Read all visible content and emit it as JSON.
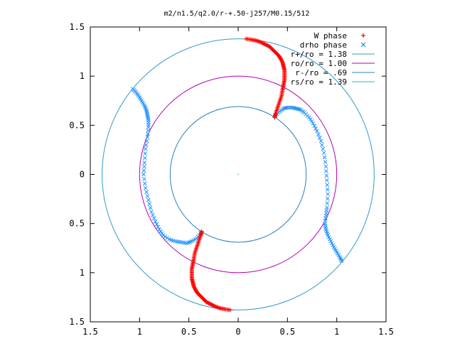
{
  "chart_data": {
    "type": "scatter",
    "title": "m2/n1.5/q2.0/r-+.50-j257/M0.15/512",
    "xlabel": "",
    "ylabel": "",
    "xlim": [
      -1.5,
      1.5
    ],
    "ylim": [
      -1.5,
      1.5
    ],
    "x_ticks": [
      -1.5,
      -1,
      -0.5,
      0,
      0.5,
      1,
      1.5
    ],
    "x_tick_labels": [
      "1.5",
      "1",
      "0.5",
      "0",
      "0.5",
      "1",
      "1.5"
    ],
    "y_ticks": [
      1.5,
      1,
      0.5,
      0,
      -0.5,
      -1,
      -1.5
    ],
    "y_tick_labels": [
      "1.5",
      "1",
      "0.5",
      "0",
      "0.5",
      "1",
      "1.5"
    ],
    "grid": false,
    "legend_position": "top-right",
    "legend": [
      {
        "label": "W phase",
        "kind": "marker",
        "marker": "+",
        "color": "#ff0000"
      },
      {
        "label": "drho phase",
        "kind": "marker",
        "marker": "x",
        "color": "#0080ff"
      },
      {
        "label": "r+/ro = 1.38",
        "kind": "line",
        "color": "#3399cc"
      },
      {
        "label": "ro/ro = 1.00",
        "kind": "line",
        "color": "#b000b0"
      },
      {
        "label": "r-/ro = .69",
        "kind": "line",
        "color": "#2a7fbf"
      },
      {
        "label": "rs/ro = 1.39",
        "kind": "line",
        "color": "#00c8c8"
      }
    ],
    "circles": [
      {
        "name": "r+/ro = 1.38",
        "r": 1.38,
        "color": "#3399cc"
      },
      {
        "name": "ro/ro = 1.00",
        "r": 1.0,
        "color": "#b000b0"
      },
      {
        "name": "r-/ro = .69",
        "r": 0.69,
        "color": "#2a7fbf"
      }
    ],
    "w_phase": [
      {
        "arm": 1,
        "points": [
          [
            0.08,
            1.38
          ],
          [
            0.14,
            1.37
          ],
          [
            0.19,
            1.36
          ],
          [
            0.24,
            1.34
          ],
          [
            0.28,
            1.32
          ],
          [
            0.32,
            1.3
          ],
          [
            0.35,
            1.27
          ],
          [
            0.38,
            1.24
          ],
          [
            0.41,
            1.21
          ],
          [
            0.43,
            1.18
          ],
          [
            0.45,
            1.14
          ],
          [
            0.46,
            1.1
          ],
          [
            0.47,
            1.06
          ],
          [
            0.47,
            1.01
          ],
          [
            0.47,
            0.96
          ],
          [
            0.46,
            0.91
          ],
          [
            0.45,
            0.86
          ],
          [
            0.44,
            0.8
          ],
          [
            0.42,
            0.74
          ],
          [
            0.4,
            0.68
          ],
          [
            0.38,
            0.62
          ],
          [
            0.37,
            0.58
          ]
        ]
      },
      {
        "arm": 2,
        "points": [
          [
            -0.08,
            -1.38
          ],
          [
            -0.14,
            -1.37
          ],
          [
            -0.19,
            -1.36
          ],
          [
            -0.24,
            -1.34
          ],
          [
            -0.28,
            -1.32
          ],
          [
            -0.32,
            -1.3
          ],
          [
            -0.35,
            -1.27
          ],
          [
            -0.38,
            -1.24
          ],
          [
            -0.41,
            -1.21
          ],
          [
            -0.43,
            -1.18
          ],
          [
            -0.45,
            -1.14
          ],
          [
            -0.46,
            -1.1
          ],
          [
            -0.47,
            -1.06
          ],
          [
            -0.47,
            -1.01
          ],
          [
            -0.47,
            -0.96
          ],
          [
            -0.46,
            -0.91
          ],
          [
            -0.45,
            -0.86
          ],
          [
            -0.44,
            -0.8
          ],
          [
            -0.42,
            -0.74
          ],
          [
            -0.4,
            -0.68
          ],
          [
            -0.38,
            -0.62
          ],
          [
            -0.37,
            -0.58
          ]
        ]
      }
    ],
    "drho_phase": [
      {
        "arm": 1,
        "points": [
          [
            0.38,
            0.6
          ],
          [
            0.42,
            0.64
          ],
          [
            0.46,
            0.67
          ],
          [
            0.5,
            0.68
          ],
          [
            0.55,
            0.68
          ],
          [
            0.59,
            0.67
          ],
          [
            0.63,
            0.66
          ],
          [
            0.67,
            0.63
          ],
          [
            0.72,
            0.58
          ],
          [
            0.76,
            0.52
          ],
          [
            0.8,
            0.44
          ],
          [
            0.84,
            0.34
          ],
          [
            0.87,
            0.22
          ],
          [
            0.89,
            0.08
          ],
          [
            0.9,
            -0.06
          ],
          [
            0.91,
            -0.2
          ],
          [
            0.9,
            -0.34
          ],
          [
            0.89,
            -0.42
          ],
          [
            0.88,
            -0.5
          ],
          [
            0.89,
            -0.56
          ],
          [
            0.91,
            -0.62
          ],
          [
            0.94,
            -0.68
          ],
          [
            0.97,
            -0.74
          ],
          [
            1.0,
            -0.79
          ],
          [
            1.03,
            -0.84
          ],
          [
            1.05,
            -0.88
          ]
        ]
      },
      {
        "arm": 2,
        "points": [
          [
            -1.07,
            0.87
          ],
          [
            -1.04,
            0.84
          ],
          [
            -1.01,
            0.8
          ],
          [
            -0.98,
            0.75
          ],
          [
            -0.95,
            0.7
          ],
          [
            -0.93,
            0.65
          ],
          [
            -0.92,
            0.6
          ],
          [
            -0.91,
            0.55
          ],
          [
            -0.91,
            0.48
          ],
          [
            -0.92,
            0.38
          ],
          [
            -0.94,
            0.26
          ],
          [
            -0.95,
            0.12
          ],
          [
            -0.96,
            0.0
          ],
          [
            -0.94,
            -0.14
          ],
          [
            -0.91,
            -0.26
          ],
          [
            -0.88,
            -0.38
          ],
          [
            -0.84,
            -0.48
          ],
          [
            -0.8,
            -0.56
          ],
          [
            -0.76,
            -0.62
          ],
          [
            -0.7,
            -0.66
          ],
          [
            -0.64,
            -0.68
          ],
          [
            -0.58,
            -0.69
          ],
          [
            -0.52,
            -0.7
          ],
          [
            -0.47,
            -0.68
          ],
          [
            -0.42,
            -0.65
          ],
          [
            -0.38,
            -0.6
          ]
        ]
      }
    ]
  }
}
